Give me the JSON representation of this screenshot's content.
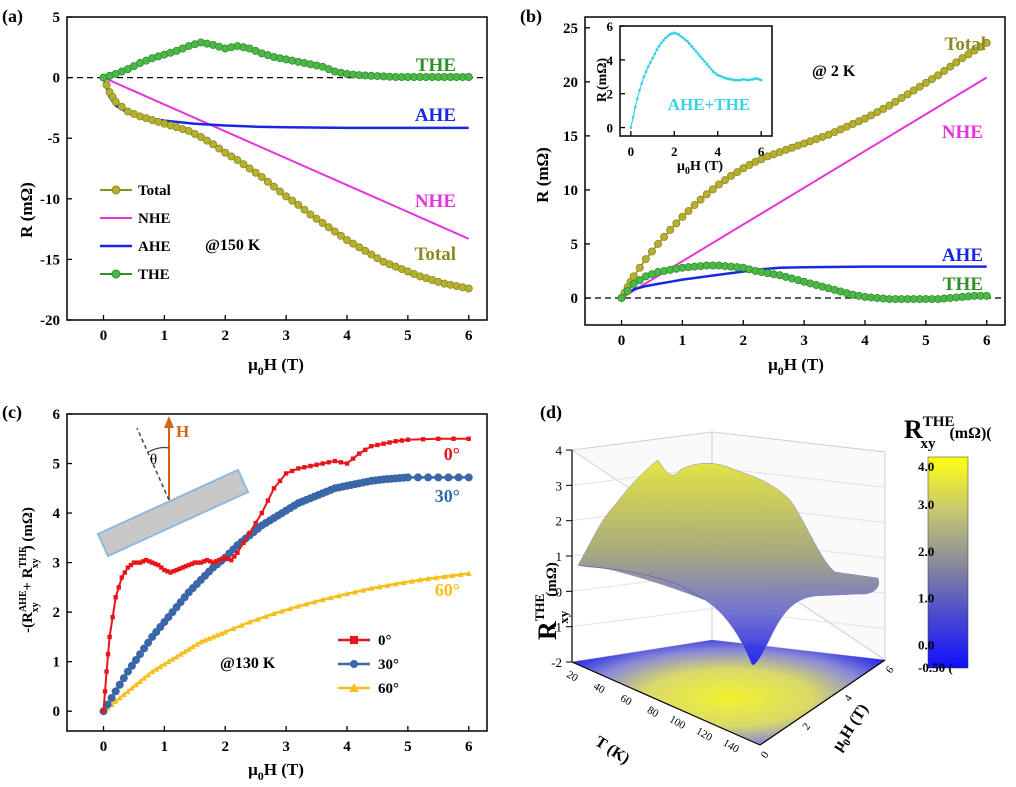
{
  "panels": {
    "a": {
      "letter": "(a)",
      "xlabel_main": "μ",
      "xlabel_sub": "0",
      "xlabel_rest": "H (T)",
      "ylabel": "R (mΩ)",
      "annotation": "@150 K",
      "curve_labels": {
        "THE": "THE",
        "AHE": "AHE",
        "NHE": "NHE",
        "Total": "Total"
      },
      "legend": [
        "Total",
        "NHE",
        "AHE",
        "THE"
      ]
    },
    "b": {
      "letter": "(b)",
      "xlabel_main": "μ",
      "xlabel_sub": "0",
      "xlabel_rest": "H (T)",
      "ylabel": "R (mΩ)",
      "annotation": "@ 2 K",
      "curve_labels": {
        "Total": "Total",
        "NHE": "NHE",
        "AHE": "AHE",
        "THE": "THE"
      },
      "inset": {
        "ylabel_main": "R",
        "ylabel_unit": "(mΩ)",
        "xlabel_main": "μ",
        "xlabel_sub": "0",
        "xlabel_rest": "H (T)",
        "label": "AHE+THE"
      }
    },
    "c": {
      "letter": "(c)",
      "xlabel_main": "μ",
      "xlabel_sub": "0",
      "xlabel_rest": "H (T)",
      "ylabel_parts": [
        "-(R",
        "AHE",
        "xy",
        " + R",
        "THE",
        "xy",
        ") (mΩ)"
      ],
      "annotation": "@130 K",
      "legend": [
        "0°",
        "30°",
        "60°"
      ],
      "curve_labels": [
        "0°",
        "30°",
        "60°"
      ],
      "schematic": {
        "field": "H",
        "angle": "θ"
      }
    },
    "d": {
      "letter": "(d)",
      "zlabel_main": "R",
      "zlabel_sup": "THE",
      "zlabel_sub": "xy",
      "zlabel_unit": "(mΩ)",
      "colorbar_title_main": "R",
      "colorbar_title_sup": "THE",
      "colorbar_title_sub": "xy",
      "colorbar_title_unit": "(mΩ)(",
      "colorbar_ticks": [
        "4.0",
        "3.0",
        "2.0",
        "1.0",
        "0.0",
        "-0.50 ("
      ],
      "z_ticks": [
        "4",
        "3",
        "2",
        "1",
        "0",
        "-1",
        "-2"
      ],
      "t_ticks": [
        "20",
        "40",
        "60",
        "80",
        "100",
        "120",
        "140"
      ],
      "h_ticks": [
        "0",
        "2",
        "4",
        "6"
      ],
      "t_label": "T (K)",
      "h_label_main": "μ",
      "h_label_sub": "0",
      "h_label_rest": "H (T)"
    }
  },
  "colors": {
    "total": "#8c8a1f",
    "total_face": "#b5b030",
    "nhe": "#e535d8",
    "ahe": "#1a27e0",
    "the": "#2f8f2a",
    "the_face": "#4cb848",
    "angle0": "#e8161b",
    "angle30": "#3a67a8",
    "angle60": "#f7bf1c",
    "inset": "#35d3e6",
    "label_total": "#8c8a1f",
    "label_nhe": "#e535d8",
    "label_ahe": "#1a27e0",
    "label_the": "#2f8f2a"
  },
  "chart_data": [
    {
      "panel": "a",
      "type": "line",
      "xlabel": "μ0H (T)",
      "ylabel": "R (mΩ)",
      "xlim": [
        -0.6,
        6.3
      ],
      "ylim": [
        -20,
        5
      ],
      "xticks": [
        0,
        1,
        2,
        3,
        4,
        5,
        6
      ],
      "yticks": [
        5,
        0,
        -5,
        -10,
        -15,
        -20
      ],
      "series": [
        {
          "name": "Total",
          "x": [
            0,
            0.1,
            0.2,
            0.4,
            0.6,
            0.8,
            1.0,
            1.2,
            1.4,
            1.6,
            1.8,
            2.0,
            2.2,
            2.4,
            2.6,
            2.8,
            3.0,
            3.2,
            3.4,
            3.6,
            3.8,
            4.0,
            4.2,
            4.4,
            4.6,
            4.8,
            5.0,
            5.2,
            5.4,
            5.6,
            5.8,
            6.0
          ],
          "y": [
            0,
            -1.2,
            -2.0,
            -2.8,
            -3.2,
            -3.5,
            -3.8,
            -4.1,
            -4.4,
            -4.9,
            -5.5,
            -6.2,
            -6.8,
            -7.5,
            -8.2,
            -9.0,
            -9.8,
            -10.5,
            -11.3,
            -12.0,
            -12.7,
            -13.4,
            -14.0,
            -14.6,
            -15.2,
            -15.6,
            -16.0,
            -16.4,
            -16.7,
            -17.0,
            -17.2,
            -17.4
          ]
        },
        {
          "name": "NHE",
          "x": [
            0,
            6
          ],
          "y": [
            0,
            -13.3
          ]
        },
        {
          "name": "AHE",
          "x": [
            0,
            0.1,
            0.2,
            0.4,
            0.6,
            0.8,
            1.0,
            1.5,
            2.0,
            2.5,
            3.0,
            4.0,
            5.0,
            6.0
          ],
          "y": [
            0,
            -1.6,
            -2.3,
            -2.9,
            -3.2,
            -3.4,
            -3.55,
            -3.8,
            -3.95,
            -4.05,
            -4.1,
            -4.15,
            -4.15,
            -4.15
          ]
        },
        {
          "name": "THE",
          "x": [
            0,
            0.2,
            0.4,
            0.6,
            0.8,
            1.0,
            1.2,
            1.4,
            1.6,
            1.8,
            2.0,
            2.2,
            2.4,
            2.6,
            2.8,
            3.0,
            3.2,
            3.4,
            3.6,
            3.8,
            4.0,
            4.2,
            4.4,
            4.6,
            4.8,
            5.0,
            5.2,
            5.4,
            5.6,
            5.8,
            6.0
          ],
          "y": [
            0,
            0.3,
            0.7,
            1.2,
            1.6,
            1.9,
            2.2,
            2.6,
            2.9,
            2.7,
            2.4,
            2.6,
            2.4,
            2.0,
            1.7,
            1.5,
            1.3,
            1.1,
            0.9,
            0.5,
            0.3,
            0.2,
            0.15,
            0.1,
            0.05,
            0.05,
            0.05,
            0.05,
            0.05,
            0.05,
            0.05
          ]
        }
      ]
    },
    {
      "panel": "b",
      "type": "line",
      "xlabel": "μ0H (T)",
      "ylabel": "R (mΩ)",
      "xlim": [
        -0.6,
        6.3
      ],
      "ylim": [
        -2.5,
        26
      ],
      "xticks": [
        0,
        1,
        2,
        3,
        4,
        5,
        6
      ],
      "yticks": [
        0,
        5,
        10,
        15,
        20,
        25
      ],
      "series": [
        {
          "name": "Total",
          "x": [
            0,
            0.1,
            0.2,
            0.4,
            0.6,
            0.8,
            1.0,
            1.2,
            1.4,
            1.6,
            1.8,
            2.0,
            2.2,
            2.4,
            2.6,
            2.8,
            3.0,
            3.2,
            3.4,
            3.6,
            3.8,
            4.0,
            4.2,
            4.4,
            4.6,
            4.8,
            5.0,
            5.2,
            5.4,
            5.6,
            5.8,
            6.0
          ],
          "y": [
            0,
            1.0,
            2.0,
            3.6,
            5.0,
            6.3,
            7.5,
            8.6,
            9.6,
            10.5,
            11.3,
            12.0,
            12.6,
            13.1,
            13.5,
            13.9,
            14.3,
            14.7,
            15.1,
            15.6,
            16.1,
            16.6,
            17.2,
            17.8,
            18.5,
            19.2,
            19.9,
            20.6,
            21.4,
            22.2,
            22.9,
            23.6
          ]
        },
        {
          "name": "NHE",
          "x": [
            0,
            6
          ],
          "y": [
            0,
            20.4
          ]
        },
        {
          "name": "AHE",
          "x": [
            0,
            0.2,
            0.4,
            0.6,
            0.8,
            1.0,
            1.4,
            1.8,
            2.2,
            2.6,
            3.0,
            4.0,
            5.0,
            6.0
          ],
          "y": [
            0,
            0.8,
            1.1,
            1.3,
            1.5,
            1.7,
            2.0,
            2.3,
            2.6,
            2.8,
            2.85,
            2.9,
            2.9,
            2.9
          ]
        },
        {
          "name": "THE",
          "x": [
            0,
            0.2,
            0.4,
            0.6,
            0.8,
            1.0,
            1.2,
            1.4,
            1.6,
            1.8,
            2.0,
            2.2,
            2.4,
            2.6,
            2.8,
            3.0,
            3.2,
            3.4,
            3.6,
            3.8,
            4.0,
            4.2,
            4.4,
            4.6,
            4.8,
            5.0,
            5.2,
            5.4,
            5.6,
            5.8,
            6.0
          ],
          "y": [
            0,
            1.3,
            2.0,
            2.4,
            2.6,
            2.8,
            2.9,
            3.0,
            3.0,
            2.9,
            2.8,
            2.5,
            2.3,
            2.1,
            1.8,
            1.5,
            1.2,
            0.9,
            0.6,
            0.3,
            0.1,
            0.0,
            -0.1,
            -0.1,
            -0.1,
            -0.1,
            -0.1,
            0.0,
            0.1,
            0.2,
            0.2
          ]
        }
      ],
      "inset": {
        "type": "line",
        "name": "AHE+THE",
        "xlim": [
          -0.5,
          6.5
        ],
        "ylim": [
          -0.5,
          6
        ],
        "xticks": [
          0,
          2,
          4,
          6
        ],
        "yticks": [
          0,
          2,
          4,
          6
        ],
        "x": [
          0,
          0.2,
          0.4,
          0.6,
          0.8,
          1.0,
          1.2,
          1.4,
          1.6,
          1.8,
          2.0,
          2.2,
          2.4,
          2.6,
          2.8,
          3.0,
          3.2,
          3.4,
          3.6,
          3.8,
          4.0,
          4.2,
          4.4,
          4.6,
          4.8,
          5.0,
          5.2,
          5.4,
          5.6,
          5.8,
          6.0
        ],
        "y": [
          0,
          1.2,
          2.2,
          3.0,
          3.6,
          4.1,
          4.6,
          5.0,
          5.3,
          5.5,
          5.6,
          5.5,
          5.3,
          5.1,
          4.8,
          4.5,
          4.2,
          3.9,
          3.6,
          3.3,
          3.1,
          3.0,
          2.9,
          2.85,
          2.8,
          2.8,
          2.85,
          2.8,
          2.85,
          2.9,
          2.8
        ]
      }
    },
    {
      "panel": "c",
      "type": "line",
      "xlabel": "μ0H (T)",
      "ylabel": "-(R_xy^AHE + R_xy^THE) (mΩ)",
      "xlim": [
        -0.6,
        6.3
      ],
      "ylim": [
        -0.4,
        6.0
      ],
      "xticks": [
        0,
        1,
        2,
        3,
        4,
        5,
        6
      ],
      "yticks": [
        0,
        1,
        2,
        3,
        4,
        5,
        6
      ],
      "series": [
        {
          "name": "0°",
          "x": [
            0,
            0.05,
            0.1,
            0.2,
            0.3,
            0.4,
            0.5,
            0.6,
            0.7,
            0.8,
            0.9,
            1.0,
            1.1,
            1.2,
            1.3,
            1.4,
            1.5,
            1.6,
            1.7,
            1.8,
            1.9,
            2.0,
            2.1,
            2.2,
            2.4,
            2.6,
            2.8,
            3.0,
            3.2,
            3.4,
            3.6,
            3.8,
            4.0,
            4.2,
            4.4,
            4.6,
            4.8,
            5.0,
            5.5,
            6.0
          ],
          "y": [
            0,
            0.8,
            1.5,
            2.3,
            2.7,
            2.9,
            3.0,
            3.0,
            3.05,
            3.0,
            2.95,
            2.85,
            2.8,
            2.85,
            2.9,
            2.95,
            3.0,
            3.0,
            3.05,
            3.0,
            3.05,
            3.1,
            3.05,
            3.2,
            3.6,
            4.0,
            4.5,
            4.8,
            4.9,
            4.95,
            5.0,
            5.05,
            5.0,
            5.2,
            5.35,
            5.4,
            5.45,
            5.48,
            5.5,
            5.5
          ]
        },
        {
          "name": "30°",
          "x": [
            0,
            0.2,
            0.4,
            0.6,
            0.8,
            1.0,
            1.2,
            1.4,
            1.6,
            1.8,
            2.0,
            2.2,
            2.4,
            2.6,
            2.8,
            3.0,
            3.2,
            3.4,
            3.6,
            3.8,
            4.0,
            4.2,
            4.4,
            4.6,
            4.8,
            5.0,
            5.5,
            6.0
          ],
          "y": [
            0,
            0.4,
            0.8,
            1.15,
            1.5,
            1.8,
            2.1,
            2.4,
            2.65,
            2.9,
            3.1,
            3.35,
            3.55,
            3.75,
            3.9,
            4.05,
            4.2,
            4.3,
            4.4,
            4.5,
            4.55,
            4.6,
            4.65,
            4.68,
            4.7,
            4.72,
            4.72,
            4.72
          ]
        },
        {
          "name": "60°",
          "x": [
            0,
            0.2,
            0.4,
            0.6,
            0.8,
            1.0,
            1.2,
            1.4,
            1.6,
            1.8,
            2.0,
            2.4,
            2.8,
            3.2,
            3.6,
            4.0,
            4.4,
            4.8,
            5.2,
            5.6,
            6.0
          ],
          "y": [
            0,
            0.2,
            0.4,
            0.6,
            0.8,
            0.95,
            1.1,
            1.25,
            1.4,
            1.5,
            1.6,
            1.8,
            1.97,
            2.12,
            2.25,
            2.37,
            2.48,
            2.57,
            2.65,
            2.72,
            2.78
          ]
        }
      ]
    },
    {
      "panel": "d",
      "type": "heatmap",
      "xlabel": "T (K)",
      "ylabel": "μ0H (T)",
      "zlabel": "R_xy^THE (mΩ)",
      "zlim": [
        -2,
        4
      ],
      "colorbar_range": [
        -0.5,
        4.0
      ],
      "T": [
        10,
        30,
        50,
        70,
        90,
        110,
        130,
        150
      ],
      "H": [
        0,
        1,
        2,
        3,
        4,
        5,
        6
      ],
      "Z": [
        [
          0,
          2.4,
          2.6,
          1.8,
          0.8,
          0.0,
          0.2
        ],
        [
          0,
          2.6,
          2.9,
          2.3,
          1.2,
          0.3,
          0.0
        ],
        [
          0,
          2.9,
          3.4,
          2.9,
          1.8,
          0.6,
          0.1
        ],
        [
          0,
          3.2,
          3.8,
          3.3,
          2.1,
          0.8,
          0.1
        ],
        [
          0,
          3.1,
          3.6,
          3.2,
          2.0,
          0.7,
          0.0
        ],
        [
          0,
          2.8,
          3.3,
          2.9,
          1.6,
          0.4,
          0.0
        ],
        [
          0,
          2.2,
          2.9,
          2.5,
          1.2,
          0.2,
          0.0
        ],
        [
          0,
          1.4,
          2.8,
          2.1,
          1.0,
          0.1,
          0.0
        ]
      ]
    }
  ]
}
